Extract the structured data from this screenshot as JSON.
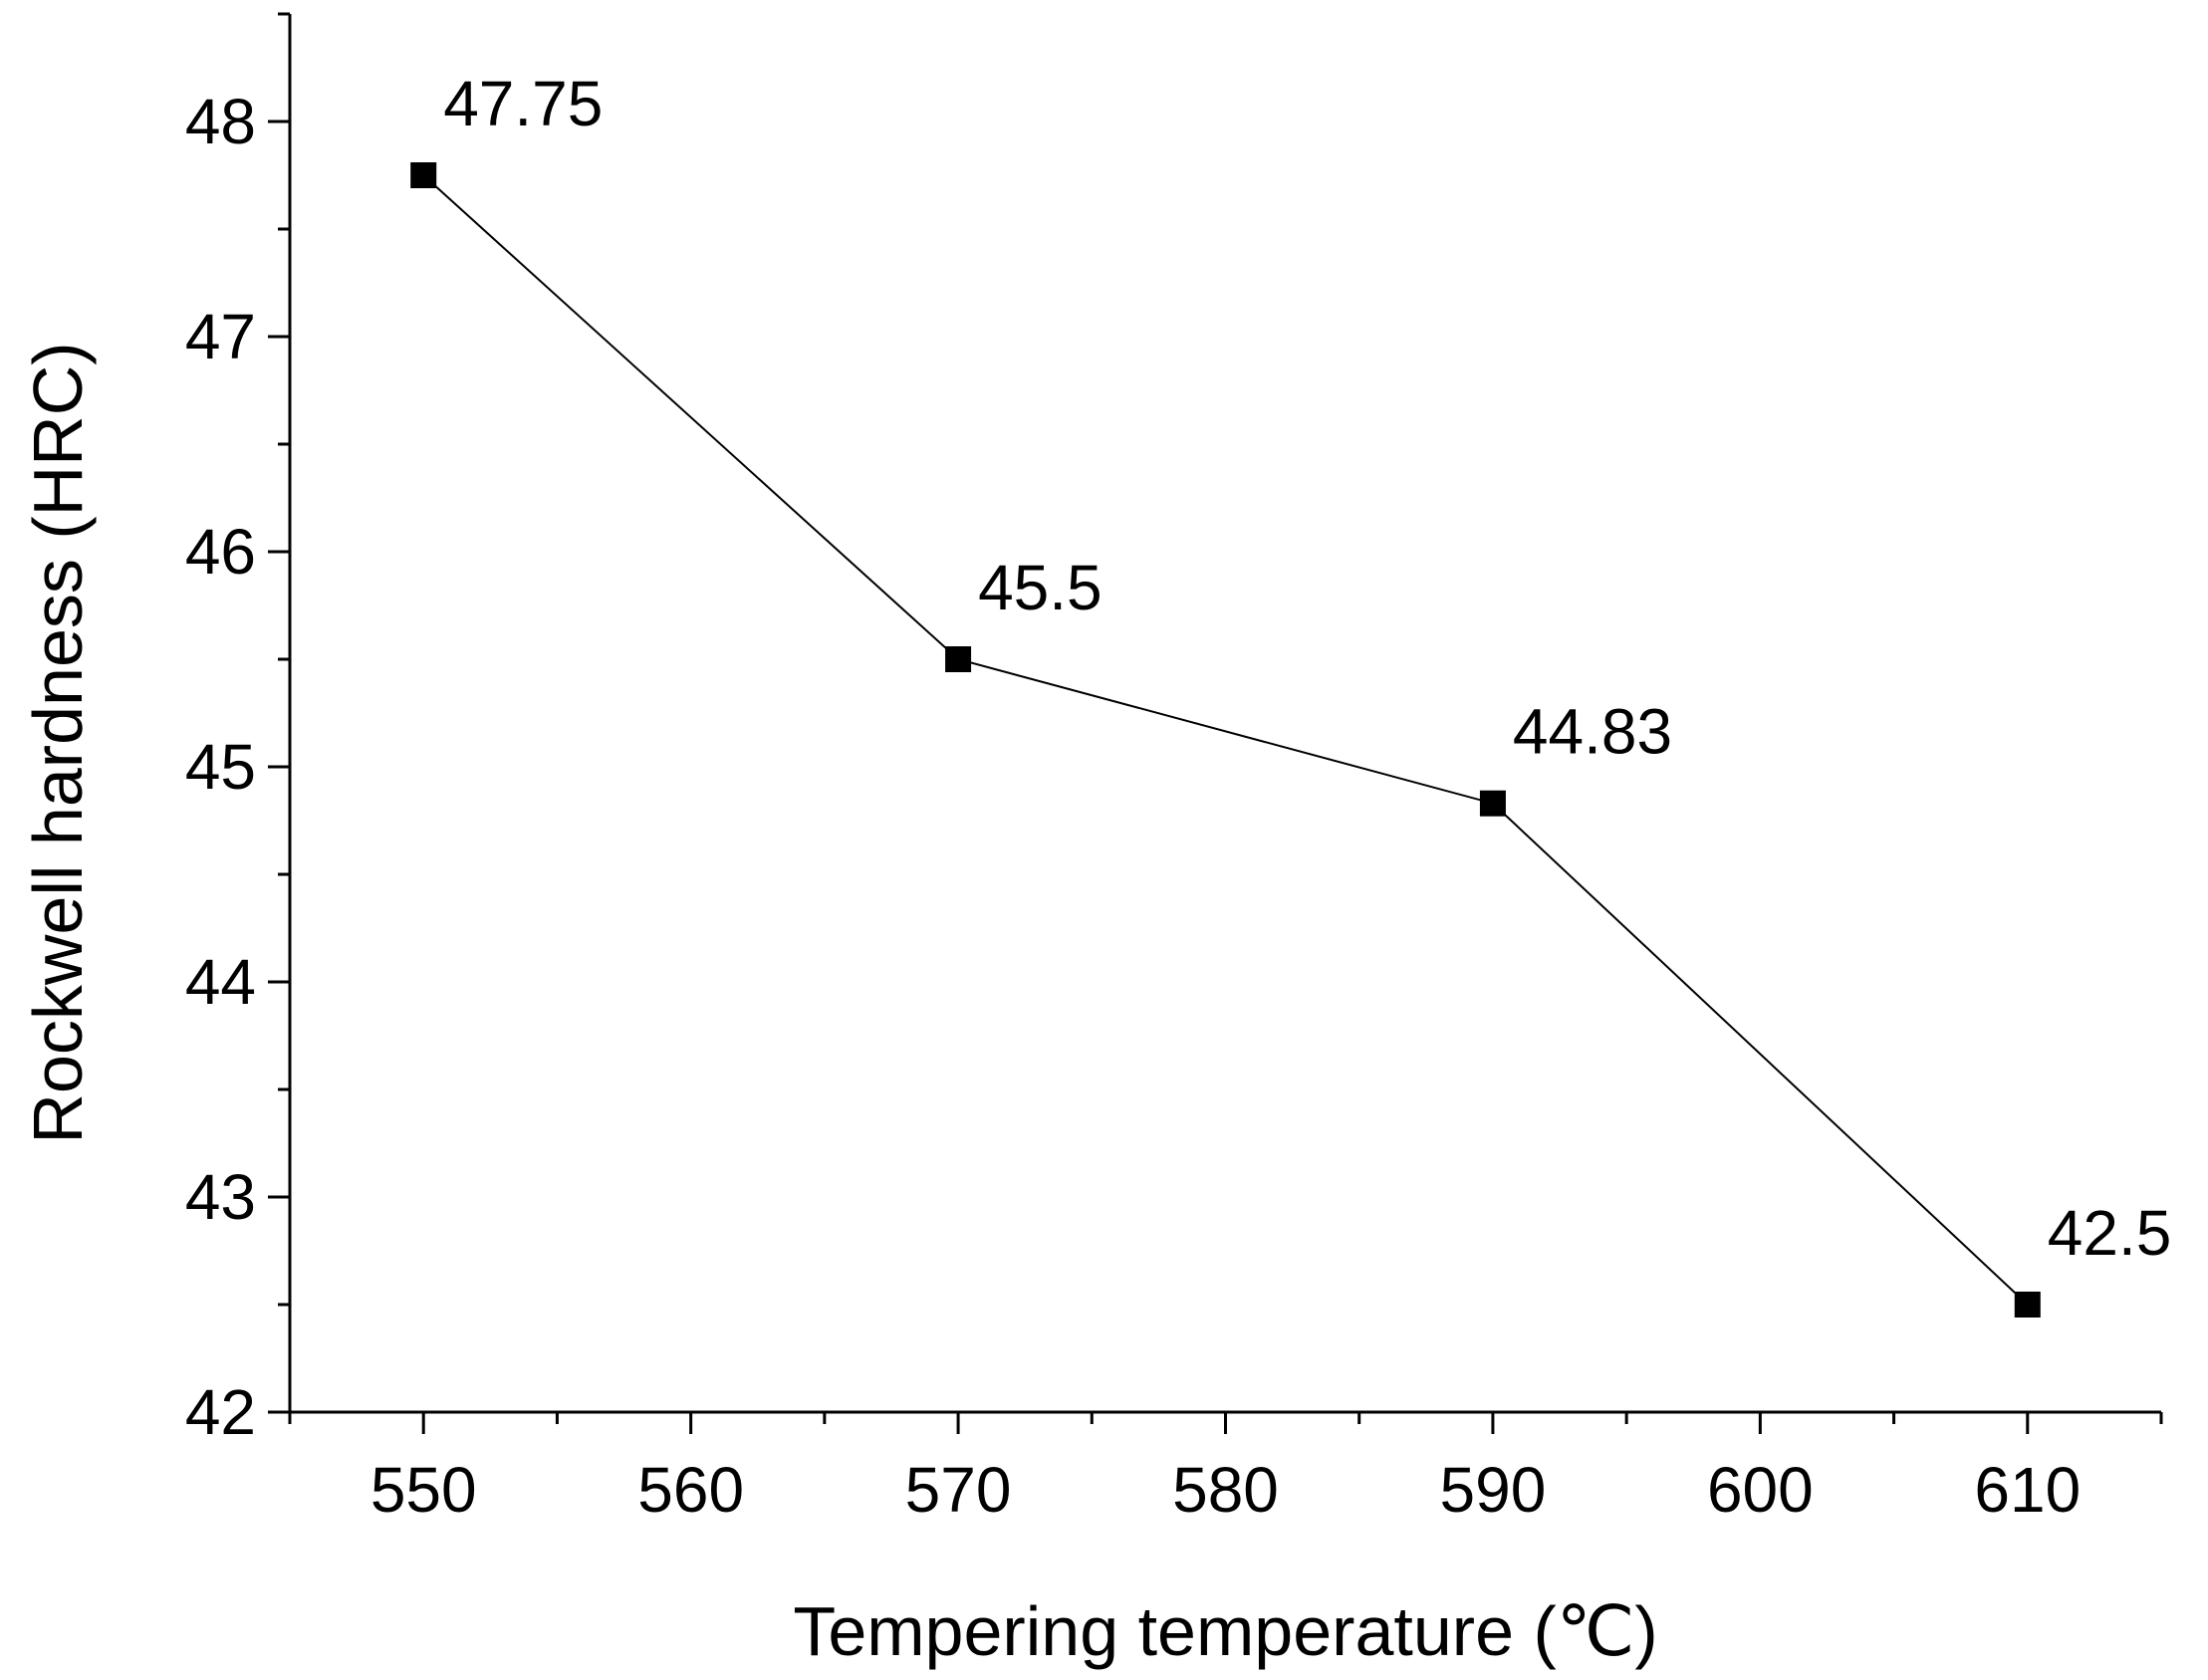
{
  "chart_data": {
    "type": "line",
    "title": "",
    "xlabel": "Tempering temperature (℃)",
    "ylabel": "Rockwell hardness (HRC)",
    "x": [
      550,
      570,
      590,
      610
    ],
    "series": [
      {
        "values": [
          47.75,
          45.5,
          44.83,
          42.5
        ],
        "data_labels": [
          "47.75",
          "45.5",
          "44.83",
          "42.5"
        ],
        "marker": "square",
        "color": "#000000"
      }
    ],
    "xlim": [
      545,
      615
    ],
    "ylim": [
      42,
      48.5
    ],
    "x_ticks": [
      550,
      560,
      570,
      580,
      590,
      600,
      610
    ],
    "x_tick_labels": [
      "550",
      "560",
      "570",
      "580",
      "590",
      "600",
      "610"
    ],
    "y_ticks": [
      42,
      43,
      44,
      45,
      46,
      47,
      48
    ],
    "y_tick_labels": [
      "42",
      "43",
      "44",
      "45",
      "46",
      "47",
      "48"
    ],
    "grid": false,
    "legend": "none"
  }
}
